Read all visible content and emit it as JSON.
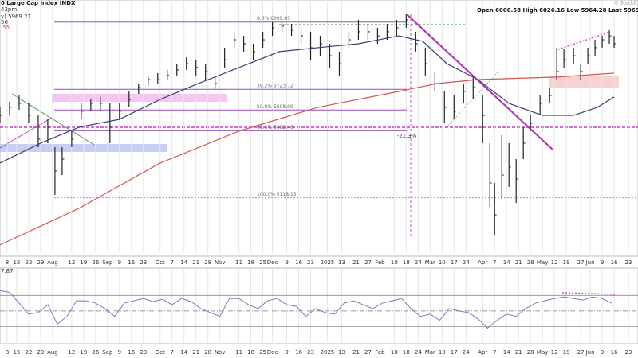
{
  "chart_data": [
    {
      "type": "ohlc",
      "title": "0 Large Cap Index INDX",
      "header_left": [
        "43pm",
        "y) 5969.21",
        "56",
        ".55"
      ],
      "header_right": "Open 6000.58 High 6026.16 Low 5964.28 Last 5969.21 Chg -76.05 (",
      "credit": "© StockC",
      "annotation": "-21.3%",
      "color": "#222222",
      "xlim": [
        0,
        267
      ],
      "ylim": [
        4810,
        6200
      ],
      "grid": true,
      "xticks": [
        {
          "value": 3,
          "label": "8"
        },
        {
          "value": 7,
          "label": "15"
        },
        {
          "value": 12,
          "label": "22"
        },
        {
          "value": 17,
          "label": "29"
        },
        {
          "value": 22,
          "label": "Aug"
        },
        {
          "value": 30,
          "label": "12"
        },
        {
          "value": 35,
          "label": "19"
        },
        {
          "value": 40,
          "label": "26"
        },
        {
          "value": 45,
          "label": "Sep"
        },
        {
          "value": 50,
          "label": "9"
        },
        {
          "value": 55,
          "label": "16"
        },
        {
          "value": 60,
          "label": "23"
        },
        {
          "value": 67,
          "label": "Oct"
        },
        {
          "value": 72,
          "label": "7"
        },
        {
          "value": 77,
          "label": "14"
        },
        {
          "value": 82,
          "label": "21"
        },
        {
          "value": 87,
          "label": "28"
        },
        {
          "value": 92,
          "label": "Nov"
        },
        {
          "value": 100,
          "label": "11"
        },
        {
          "value": 105,
          "label": "18"
        },
        {
          "value": 110,
          "label": "25"
        },
        {
          "value": 114,
          "label": "Dec"
        },
        {
          "value": 120,
          "label": "9"
        },
        {
          "value": 125,
          "label": "16"
        },
        {
          "value": 130,
          "label": "23"
        },
        {
          "value": 137,
          "label": "2025"
        },
        {
          "value": 143,
          "label": "13"
        },
        {
          "value": 149,
          "label": "21"
        },
        {
          "value": 154,
          "label": "27"
        },
        {
          "value": 159,
          "label": "Feb"
        },
        {
          "value": 165,
          "label": "10"
        },
        {
          "value": 170,
          "label": "18"
        },
        {
          "value": 175,
          "label": "24"
        },
        {
          "value": 180,
          "label": "Mar"
        },
        {
          "value": 185,
          "label": "10"
        },
        {
          "value": 190,
          "label": "17"
        },
        {
          "value": 195,
          "label": "24"
        },
        {
          "value": 202,
          "label": "Apr"
        },
        {
          "value": 207,
          "label": "7"
        },
        {
          "value": 212,
          "label": "14"
        },
        {
          "value": 217,
          "label": "21"
        },
        {
          "value": 222,
          "label": "28"
        },
        {
          "value": 227,
          "label": "May"
        },
        {
          "value": 232,
          "label": "12"
        },
        {
          "value": 237,
          "label": "19"
        },
        {
          "value": 243,
          "label": "27"
        },
        {
          "value": 247,
          "label": "Jun"
        },
        {
          "value": 252,
          "label": "9"
        },
        {
          "value": 257,
          "label": "16"
        },
        {
          "value": 263,
          "label": "23"
        }
      ],
      "x": [
        0,
        4,
        8,
        12,
        16,
        20,
        23,
        26,
        30,
        34,
        38,
        42,
        46,
        50,
        54,
        58,
        62,
        66,
        70,
        74,
        78,
        82,
        86,
        90,
        94,
        98,
        102,
        106,
        110,
        114,
        118,
        122,
        126,
        130,
        134,
        138,
        142,
        146,
        150,
        154,
        158,
        162,
        166,
        170,
        174,
        178,
        182,
        186,
        190,
        194,
        198,
        202,
        205,
        207,
        210,
        213,
        216,
        219,
        222,
        226,
        230,
        233,
        236,
        240,
        243,
        246,
        249,
        252,
        255,
        257
      ],
      "high": [
        5623,
        5654,
        5689,
        5645,
        5578,
        5556,
        5401,
        5401,
        5490,
        5645,
        5667,
        5681,
        5645,
        5645,
        5712,
        5756,
        5801,
        5814,
        5832,
        5867,
        5902,
        5889,
        5867,
        5801,
        5956,
        6036,
        6022,
        5978,
        6045,
        6098,
        6102,
        6089,
        6067,
        6045,
        6022,
        5978,
        5934,
        6045,
        6111,
        6089,
        6067,
        6089,
        6111,
        6142,
        6045,
        5956,
        5823,
        5712,
        5689,
        5756,
        5801,
        5689,
        5423,
        5201,
        5467,
        5423,
        5334,
        5512,
        5578,
        5689,
        5734,
        5956,
        5947,
        5956,
        5867,
        5956,
        6000,
        6022,
        6053,
        6022
      ],
      "low": [
        5534,
        5578,
        5610,
        5534,
        5401,
        5423,
        5134,
        5245,
        5401,
        5556,
        5601,
        5601,
        5423,
        5556,
        5623,
        5698,
        5743,
        5756,
        5778,
        5801,
        5832,
        5801,
        5778,
        5725,
        5845,
        5956,
        5934,
        5889,
        5956,
        6022,
        6045,
        6022,
        5978,
        5889,
        5911,
        5845,
        5801,
        5956,
        6000,
        6000,
        5978,
        6000,
        6022,
        6067,
        5934,
        5801,
        5712,
        5534,
        5556,
        5645,
        5667,
        5423,
        5068,
        4912,
        5112,
        5179,
        5090,
        5334,
        5490,
        5578,
        5645,
        5778,
        5845,
        5867,
        5778,
        5867,
        5911,
        5956,
        5978,
        5956
      ],
      "close": [
        5578,
        5623,
        5645,
        5578,
        5445,
        5512,
        5268,
        5334,
        5445,
        5601,
        5645,
        5645,
        5512,
        5601,
        5667,
        5734,
        5778,
        5778,
        5801,
        5832,
        5867,
        5845,
        5823,
        5756,
        5889,
        6000,
        5978,
        5934,
        6000,
        6067,
        6076,
        6053,
        6022,
        5956,
        5978,
        5911,
        5867,
        6000,
        6045,
        6045,
        6022,
        6045,
        6067,
        6111,
        5978,
        5867,
        5756,
        5623,
        5601,
        5712,
        5734,
        5578,
        5201,
        5023,
        5245,
        5290,
        5223,
        5423,
        5534,
        5645,
        5689,
        5823,
        5889,
        5911,
        5823,
        5911,
        5956,
        6000,
        6022,
        5978
      ],
      "overlays": [
        {
          "color": "#d9534f",
          "x": [
            0,
            33,
            67,
            100,
            133,
            167,
            183,
            200,
            233,
            257
          ],
          "values": [
            4855,
            5059,
            5312,
            5490,
            5623,
            5712,
            5756,
            5778,
            5792,
            5814
          ]
        },
        {
          "color": "#3d3d7a",
          "x": [
            0,
            17,
            33,
            50,
            67,
            83,
            100,
            117,
            133,
            150,
            167,
            177,
            187,
            200,
            213,
            227,
            240,
            250,
            257
          ],
          "values": [
            5312,
            5423,
            5512,
            5556,
            5667,
            5756,
            5845,
            5934,
            5956,
            5978,
            6022,
            5991,
            5867,
            5778,
            5645,
            5578,
            5578,
            5623,
            5681
          ]
        }
      ],
      "fib_levels": [
        {
          "value": 6099.05,
          "label": "0.0% 6099.05"
        },
        {
          "value": 5723.72,
          "label": "38.2% 5723.72"
        },
        {
          "value": 5608.09,
          "label": "50.0% 5608.09"
        },
        {
          "value": 5492.46,
          "label": "61.8% 5492.46"
        },
        {
          "value": 5118.13,
          "label": "100.0% 5118.13"
        }
      ]
    },
    {
      "type": "line",
      "title": "7.87",
      "color": "#7a7ac0",
      "xlim": [
        0,
        267
      ],
      "ylim": [
        8,
        105
      ],
      "levels": [
        70,
        50,
        30
      ],
      "x": [
        0,
        4,
        8,
        12,
        16,
        20,
        24,
        28,
        32,
        36,
        40,
        44,
        48,
        52,
        56,
        60,
        64,
        68,
        72,
        76,
        80,
        84,
        88,
        92,
        96,
        100,
        104,
        108,
        112,
        116,
        120,
        124,
        128,
        132,
        136,
        140,
        144,
        148,
        152,
        156,
        160,
        164,
        168,
        172,
        176,
        180,
        184,
        188,
        192,
        196,
        200,
        204,
        208,
        212,
        216,
        220,
        224,
        228,
        232,
        236,
        240,
        244,
        248,
        252,
        256
      ],
      "values": [
        76,
        74,
        60,
        46,
        48,
        58,
        33,
        43,
        63,
        63,
        60,
        53,
        43,
        60,
        63,
        66,
        62,
        65,
        58,
        66,
        62,
        53,
        48,
        43,
        66,
        66,
        58,
        53,
        63,
        66,
        58,
        56,
        43,
        53,
        48,
        46,
        60,
        63,
        58,
        53,
        60,
        63,
        66,
        53,
        43,
        46,
        38,
        53,
        50,
        48,
        40,
        28,
        38,
        46,
        43,
        53,
        60,
        63,
        66,
        68,
        66,
        64,
        68,
        66,
        60
      ]
    }
  ]
}
